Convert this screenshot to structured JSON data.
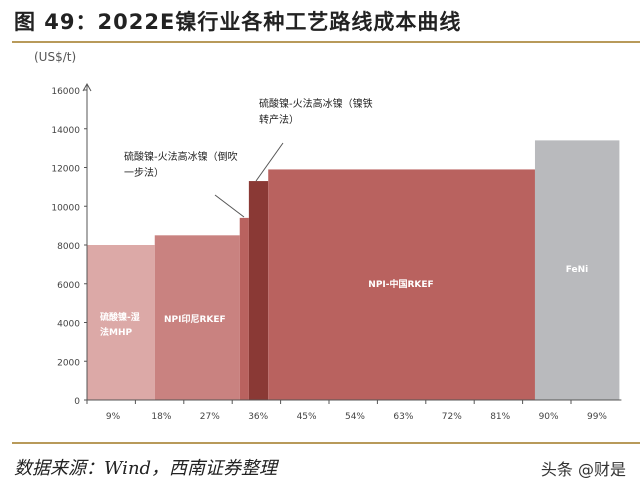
{
  "title": "图 49：2022E镍行业各种工艺路线成本曲线",
  "source": "数据来源：Wind，西南证券整理",
  "watermark": "头条 @财是",
  "chart_data": {
    "type": "bar",
    "subtype": "cost-curve (variable-width bars)",
    "ylabel": "(US$/t)",
    "ylim": [
      0,
      16000
    ],
    "yticks": [
      0,
      2000,
      4000,
      6000,
      8000,
      10000,
      12000,
      14000,
      16000
    ],
    "xlim": [
      0,
      99
    ],
    "xtick_labels": [
      "9%",
      "18%",
      "27%",
      "36%",
      "45%",
      "54%",
      "63%",
      "72%",
      "81%",
      "90%",
      "99%"
    ],
    "grid": false,
    "segments": [
      {
        "label": "硫酸镍-湿法MHP",
        "x_start": 0,
        "x_end": 12.6,
        "value": 8000,
        "color": "#dca9a7"
      },
      {
        "label": "NPI印尼RKEF",
        "x_start": 12.6,
        "x_end": 28.4,
        "value": 8500,
        "color": "#c98280"
      },
      {
        "label": "",
        "x_start": 28.4,
        "x_end": 30.1,
        "value": 9400,
        "color": "#b9625f"
      },
      {
        "label": "",
        "x_start": 30.1,
        "x_end": 33.7,
        "value": 11300,
        "color": "#8a3935"
      },
      {
        "label": "NPI-中国RKEF",
        "x_start": 33.7,
        "x_end": 83.3,
        "value": 11900,
        "color": "#b9625f"
      },
      {
        "label": "FeNi",
        "x_start": 83.3,
        "x_end": 99,
        "value": 13400,
        "color": "#b9babd"
      }
    ],
    "annotations": [
      {
        "text": "硫酸镍-火法高冰镍（倒吹一步法）",
        "lines": [
          "硫酸镍-火法高冰镍（倒吹",
          "一步法）"
        ],
        "target_segment": 2
      },
      {
        "text": "硫酸镍-火法高冰镍（镍铁转产法）",
        "lines": [
          "硫酸镍-火法高冰镍（镍铁",
          "转产法）"
        ],
        "target_segment": 3
      }
    ]
  }
}
